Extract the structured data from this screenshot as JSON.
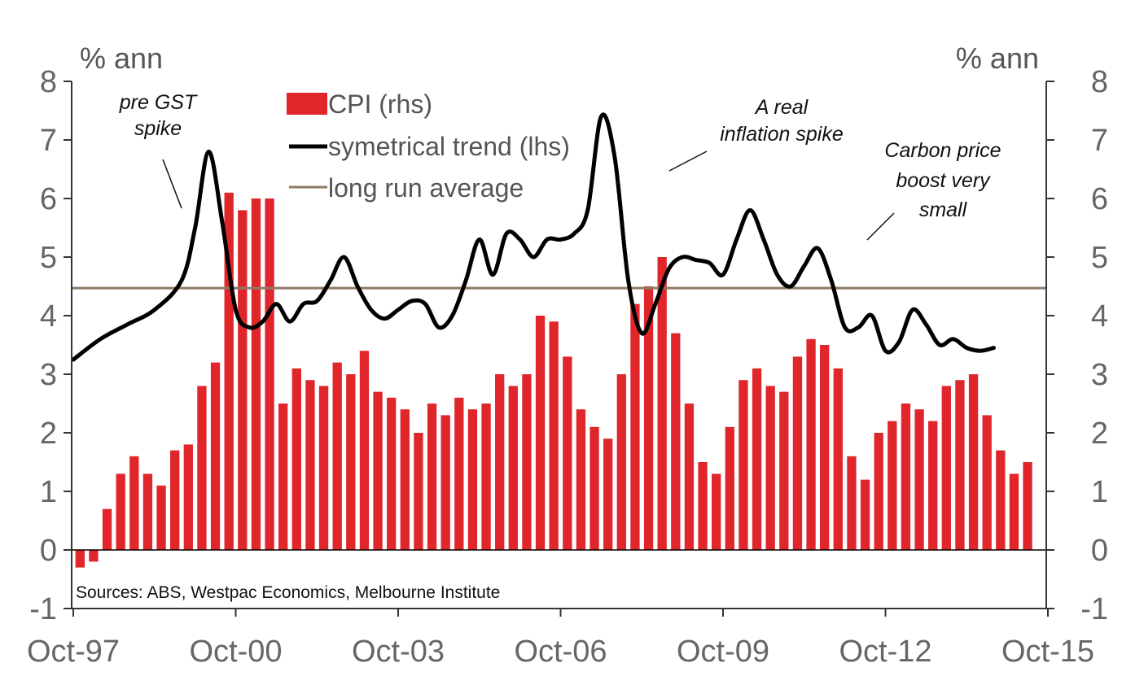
{
  "chart_data": {
    "type": "bar+line",
    "left_axis_unit": "% ann",
    "right_axis_unit": "% ann",
    "ylim": [
      -1,
      8
    ],
    "y_ticks": [
      "-1",
      "0",
      "1",
      "2",
      "3",
      "4",
      "5",
      "6",
      "7",
      "8"
    ],
    "x_tick_labels": [
      "Oct-97",
      "Oct-00",
      "Oct-03",
      "Oct-06",
      "Oct-09",
      "Oct-12",
      "Oct-15"
    ],
    "x_start": 1997.75,
    "x_end": 2015.75,
    "legend": {
      "cpi": "CPI (rhs)",
      "trend": "symetrical trend (lhs)",
      "average": "long run average"
    },
    "colors": {
      "cpi": "#e0262b",
      "trend": "#000000",
      "average": "#8c7a64",
      "axis": "#333333",
      "tick_text": "#666666"
    },
    "cpi_series": {
      "name": "CPI (rhs)",
      "start_quarter": 1997.75,
      "quarter_step": 0.25,
      "values": [
        -0.3,
        -0.2,
        0.7,
        1.3,
        1.6,
        1.3,
        1.1,
        1.7,
        1.8,
        2.8,
        3.2,
        6.1,
        5.8,
        6.0,
        6.0,
        2.5,
        3.1,
        2.9,
        2.8,
        3.2,
        3.0,
        3.4,
        2.7,
        2.6,
        2.4,
        2.0,
        2.5,
        2.3,
        2.6,
        2.4,
        2.5,
        3.0,
        2.8,
        3.0,
        4.0,
        3.9,
        3.3,
        2.4,
        2.1,
        1.9,
        3.0,
        4.2,
        4.5,
        5.0,
        3.7,
        2.5,
        1.5,
        1.3,
        2.1,
        2.9,
        3.1,
        2.8,
        2.7,
        3.3,
        3.6,
        3.5,
        3.1,
        1.6,
        1.2,
        2.0,
        2.2,
        2.5,
        2.4,
        2.2,
        2.8,
        2.9,
        3.0,
        2.3,
        1.7,
        1.3,
        1.5
      ]
    },
    "trend_series": {
      "name": "symetrical trend (lhs)",
      "points": [
        [
          1997.75,
          3.25
        ],
        [
          1998.25,
          3.6
        ],
        [
          1998.75,
          3.85
        ],
        [
          1999.25,
          4.1
        ],
        [
          1999.75,
          4.6
        ],
        [
          2000.0,
          5.5
        ],
        [
          2000.25,
          6.8
        ],
        [
          2000.5,
          5.6
        ],
        [
          2000.75,
          4.1
        ],
        [
          2001.0,
          3.8
        ],
        [
          2001.25,
          3.9
        ],
        [
          2001.5,
          4.2
        ],
        [
          2001.75,
          3.9
        ],
        [
          2002.0,
          4.2
        ],
        [
          2002.25,
          4.25
        ],
        [
          2002.5,
          4.6
        ],
        [
          2002.75,
          5.0
        ],
        [
          2003.0,
          4.5
        ],
        [
          2003.25,
          4.1
        ],
        [
          2003.5,
          3.95
        ],
        [
          2003.75,
          4.1
        ],
        [
          2004.0,
          4.25
        ],
        [
          2004.25,
          4.2
        ],
        [
          2004.5,
          3.8
        ],
        [
          2004.75,
          4.0
        ],
        [
          2005.0,
          4.6
        ],
        [
          2005.25,
          5.3
        ],
        [
          2005.5,
          4.7
        ],
        [
          2005.75,
          5.4
        ],
        [
          2006.0,
          5.3
        ],
        [
          2006.25,
          5.0
        ],
        [
          2006.5,
          5.3
        ],
        [
          2006.75,
          5.3
        ],
        [
          2007.0,
          5.4
        ],
        [
          2007.25,
          5.8
        ],
        [
          2007.5,
          7.4
        ],
        [
          2007.75,
          6.7
        ],
        [
          2008.0,
          4.6
        ],
        [
          2008.25,
          3.7
        ],
        [
          2008.5,
          4.2
        ],
        [
          2008.75,
          4.8
        ],
        [
          2009.0,
          5.0
        ],
        [
          2009.25,
          4.95
        ],
        [
          2009.5,
          4.9
        ],
        [
          2009.75,
          4.7
        ],
        [
          2010.0,
          5.3
        ],
        [
          2010.25,
          5.8
        ],
        [
          2010.5,
          5.3
        ],
        [
          2010.75,
          4.7
        ],
        [
          2011.0,
          4.5
        ],
        [
          2011.25,
          4.85
        ],
        [
          2011.5,
          5.15
        ],
        [
          2011.75,
          4.6
        ],
        [
          2012.0,
          3.8
        ],
        [
          2012.25,
          3.8
        ],
        [
          2012.5,
          4.0
        ],
        [
          2012.75,
          3.4
        ],
        [
          2013.0,
          3.55
        ],
        [
          2013.25,
          4.1
        ],
        [
          2013.5,
          3.85
        ],
        [
          2013.75,
          3.5
        ],
        [
          2014.0,
          3.6
        ],
        [
          2014.25,
          3.45
        ],
        [
          2014.5,
          3.4
        ],
        [
          2014.75,
          3.45
        ]
      ]
    },
    "long_run_average": 4.47,
    "annotations": [
      {
        "lines": [
          "pre GST",
          "spike"
        ]
      },
      {
        "lines": [
          "A real",
          "inflation spike"
        ]
      },
      {
        "lines": [
          "Carbon price",
          "boost very",
          "small"
        ]
      }
    ],
    "source": "Sources: ABS, Westpac Economics, Melbourne Institute",
    "grid": false,
    "legend_placement": "top-center"
  }
}
